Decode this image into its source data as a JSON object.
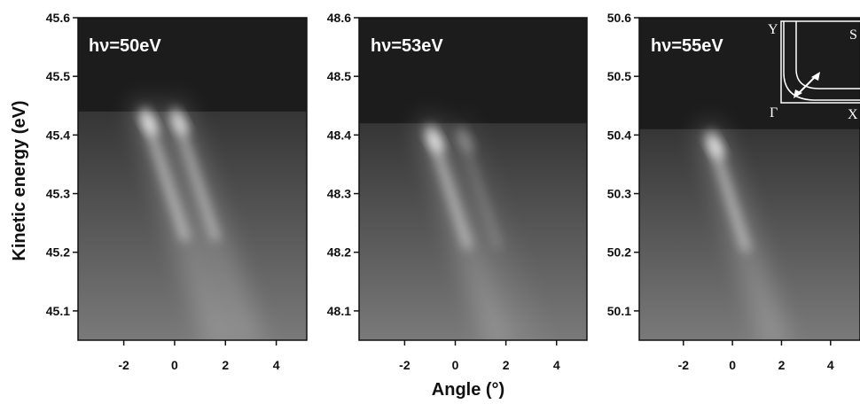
{
  "chart_data": {
    "type": "heatmap",
    "xlabel": "Angle (°)",
    "ylabel": "Kinetic energy (eV)",
    "colors": {
      "background": "#1c1c1c",
      "band": "#ffffff",
      "axis": "#111111"
    },
    "panels": [
      {
        "title": "hν=50eV",
        "xlim": [
          -3.8,
          5.2
        ],
        "ylim": [
          45.05,
          45.6
        ],
        "xticks": [
          -2,
          0,
          2,
          4
        ],
        "yticks": [
          45.1,
          45.2,
          45.3,
          45.4,
          45.5,
          45.6
        ],
        "ytick_labels": [
          "45.1",
          "45.2",
          "45.3",
          "45.4",
          "45.5",
          "45.6"
        ],
        "fermi_edge_eV": 45.44,
        "bands": [
          {
            "top_angle": -1.2,
            "top_energy": 45.44,
            "dispersion_deg_per_eV": 7.5,
            "intensity": 1.0
          },
          {
            "top_angle": 0.0,
            "top_energy": 45.44,
            "dispersion_deg_per_eV": 7.5,
            "intensity": 0.9
          }
        ]
      },
      {
        "title": "hν=53eV",
        "xlim": [
          -3.8,
          5.2
        ],
        "ylim": [
          48.05,
          48.6
        ],
        "xticks": [
          -2,
          0,
          2,
          4
        ],
        "yticks": [
          48.1,
          48.2,
          48.3,
          48.4,
          48.5,
          48.6
        ],
        "ytick_labels": [
          "48.1",
          "48.2",
          "48.3",
          "48.4",
          "48.5",
          "48.6"
        ],
        "fermi_edge_eV": 48.42,
        "bands": [
          {
            "top_angle": -1.0,
            "top_energy": 48.41,
            "dispersion_deg_per_eV": 7.5,
            "intensity": 1.0
          },
          {
            "top_angle": 0.2,
            "top_energy": 48.41,
            "dispersion_deg_per_eV": 7.5,
            "intensity": 0.35
          }
        ]
      },
      {
        "title": "hν=55eV",
        "xlim": [
          -3.8,
          5.2
        ],
        "ylim": [
          50.05,
          50.6
        ],
        "xticks": [
          -2,
          0,
          2,
          4
        ],
        "yticks": [
          50.1,
          50.2,
          50.3,
          50.4,
          50.5,
          50.6
        ],
        "ytick_labels": [
          "50.1",
          "50.2",
          "50.3",
          "50.4",
          "50.5",
          "50.6"
        ],
        "fermi_edge_eV": 50.41,
        "bands": [
          {
            "top_angle": -0.9,
            "top_energy": 50.4,
            "dispersion_deg_per_eV": 7.5,
            "intensity": 1.0
          }
        ],
        "inset": {
          "labels": {
            "Y": "Y",
            "S": "S",
            "G": "Γ",
            "X": "X"
          }
        }
      }
    ]
  }
}
